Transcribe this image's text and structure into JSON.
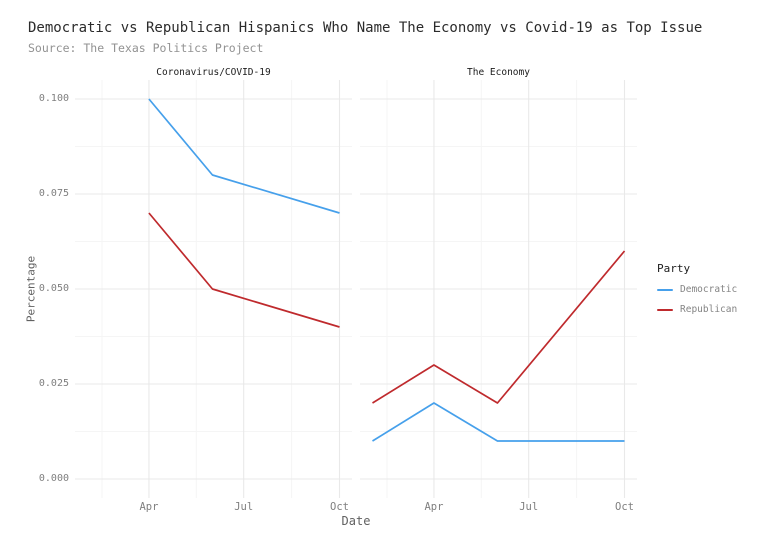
{
  "title": "Democratic vs Republican Hispanics Who Name The Economy vs Covid-19 as Top Issue",
  "subtitle": "Source: The Texas Politics Project",
  "x_axis_title": "Date",
  "y_axis_title": "Percentage",
  "legend": {
    "title": "Party",
    "items": [
      {
        "label": "Democratic",
        "color": "#46a0eb"
      },
      {
        "label": "Republican",
        "color": "#bf2a2d"
      }
    ]
  },
  "colors": {
    "democratic": "#46a0eb",
    "republican": "#bf2a2d",
    "grid_major": "#e9e9e9",
    "grid_minor": "#f5f5f5",
    "panel_background": "#ffffff"
  },
  "chart_data": {
    "type": "line",
    "title": "Democratic vs Republican Hispanics Who Name The Economy vs Covid-19 as Top Issue",
    "subtitle": "Source: The Texas Politics Project",
    "xlabel": "Date",
    "ylabel": "Percentage",
    "legend_title": "Party",
    "legend_position": "right",
    "grid": "major+minor",
    "facets": [
      {
        "label": "Coronavirus/COVID-19",
        "series": [
          {
            "name": "Democratic",
            "color": "#46a0eb",
            "points": [
              {
                "month": "Apr",
                "day": 91,
                "value": 0.1
              },
              {
                "month": "Jun",
                "day": 152,
                "value": 0.08
              },
              {
                "month": "Oct",
                "day": 274,
                "value": 0.07
              }
            ]
          },
          {
            "name": "Republican",
            "color": "#bf2a2d",
            "points": [
              {
                "month": "Apr",
                "day": 91,
                "value": 0.07
              },
              {
                "month": "Jun",
                "day": 152,
                "value": 0.05
              },
              {
                "month": "Oct",
                "day": 274,
                "value": 0.04
              }
            ]
          }
        ]
      },
      {
        "label": "The Economy",
        "series": [
          {
            "name": "Democratic",
            "color": "#46a0eb",
            "points": [
              {
                "month": "Feb",
                "day": 32,
                "value": 0.01
              },
              {
                "month": "Apr",
                "day": 91,
                "value": 0.02
              },
              {
                "month": "Jun",
                "day": 152,
                "value": 0.01
              },
              {
                "month": "Oct",
                "day": 274,
                "value": 0.01
              }
            ]
          },
          {
            "name": "Republican",
            "color": "#bf2a2d",
            "points": [
              {
                "month": "Feb",
                "day": 32,
                "value": 0.02
              },
              {
                "month": "Apr",
                "day": 91,
                "value": 0.03
              },
              {
                "month": "Jun",
                "day": 152,
                "value": 0.02
              },
              {
                "month": "Oct",
                "day": 274,
                "value": 0.06
              }
            ]
          }
        ]
      }
    ],
    "x_ticks": {
      "days": [
        91,
        182,
        274
      ],
      "labels": [
        "Apr",
        "Jul",
        "Oct"
      ]
    },
    "x_minor_days": [
      46,
      136.5,
      228
    ],
    "x_domain_days": [
      20,
      286
    ],
    "y_ticks": {
      "values": [
        0.0,
        0.025,
        0.05,
        0.075,
        0.1
      ],
      "labels": [
        "0.000",
        "0.025",
        "0.050",
        "0.075",
        "0.100"
      ]
    },
    "y_minor": [
      0.0125,
      0.0375,
      0.0625,
      0.0875
    ],
    "y_domain": [
      -0.005,
      0.105
    ]
  }
}
